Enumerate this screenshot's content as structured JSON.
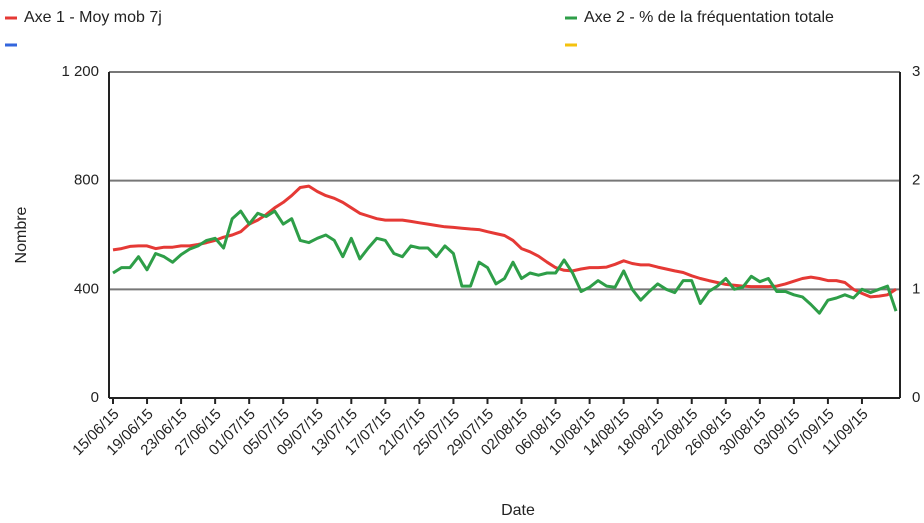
{
  "chart_data": {
    "type": "line",
    "xlabel": "Date",
    "ylabel": "Nombre",
    "categories": [
      "15/06/15",
      null,
      null,
      null,
      "19/06/15",
      null,
      null,
      null,
      "23/06/15",
      null,
      null,
      null,
      "27/06/15",
      null,
      null,
      null,
      "01/07/15",
      null,
      null,
      null,
      "05/07/15",
      null,
      null,
      null,
      "09/07/15",
      null,
      null,
      null,
      "13/07/15",
      null,
      null,
      null,
      "17/07/15",
      null,
      null,
      null,
      "21/07/15",
      null,
      null,
      null,
      "25/07/15",
      null,
      null,
      null,
      "29/07/15",
      null,
      null,
      null,
      "02/08/15",
      null,
      null,
      null,
      "06/08/15",
      null,
      null,
      null,
      "10/08/15",
      null,
      null,
      null,
      "14/08/15",
      null,
      null,
      null,
      "18/08/15",
      null,
      null,
      null,
      "22/08/15",
      null,
      null,
      null,
      "26/08/15",
      null,
      null,
      null,
      "30/08/15",
      null,
      null,
      null,
      "03/09/15",
      null,
      null,
      null,
      "07/09/15",
      null,
      null,
      null,
      "11/09/15",
      null,
      null,
      null,
      null
    ],
    "series": [
      {
        "name": "Axe 1 - Moy mob 7j",
        "color": "#e53935",
        "axis": "y",
        "values": [
          545,
          550,
          558,
          560,
          560,
          550,
          555,
          555,
          560,
          560,
          565,
          572,
          580,
          592,
          600,
          612,
          640,
          655,
          675,
          700,
          720,
          745,
          775,
          780,
          760,
          745,
          735,
          720,
          700,
          680,
          670,
          660,
          655,
          655,
          655,
          650,
          645,
          640,
          635,
          630,
          628,
          625,
          622,
          620,
          612,
          605,
          598,
          580,
          550,
          538,
          522,
          500,
          480,
          470,
          468,
          475,
          480,
          480,
          482,
          492,
          505,
          495,
          490,
          490,
          482,
          475,
          468,
          462,
          450,
          440,
          432,
          425,
          418,
          415,
          412,
          410,
          410,
          410,
          412,
          420,
          430,
          440,
          445,
          440,
          432,
          432,
          425,
          400,
          385,
          372,
          375,
          380,
          400
        ]
      },
      {
        "name": "Axe 2 - % de la fréquentation totale",
        "color": "#2e9e48",
        "axis": "y2",
        "values": [
          1.15,
          1.2,
          1.2,
          1.3,
          1.18,
          1.33,
          1.3,
          1.25,
          1.32,
          1.37,
          1.4,
          1.45,
          1.47,
          1.38,
          1.65,
          1.72,
          1.6,
          1.7,
          1.67,
          1.72,
          1.6,
          1.65,
          1.45,
          1.43,
          1.47,
          1.5,
          1.45,
          1.3,
          1.47,
          1.28,
          1.38,
          1.47,
          1.45,
          1.33,
          1.3,
          1.4,
          1.38,
          1.38,
          1.3,
          1.4,
          1.33,
          1.03,
          1.03,
          1.25,
          1.2,
          1.05,
          1.1,
          1.25,
          1.1,
          1.15,
          1.13,
          1.15,
          1.15,
          1.27,
          1.15,
          0.98,
          1.02,
          1.08,
          1.03,
          1.02,
          1.17,
          1.0,
          0.9,
          0.98,
          1.05,
          1.0,
          0.97,
          1.08,
          1.08,
          0.87,
          0.98,
          1.03,
          1.1,
          1.0,
          1.02,
          1.12,
          1.07,
          1.1,
          0.98,
          0.98,
          0.95,
          0.93,
          0.86,
          0.78,
          0.9,
          0.92,
          0.95,
          0.92,
          1.0,
          0.97,
          1.0,
          1.03,
          0.8
        ]
      }
    ],
    "ylim": [
      0,
      1200
    ],
    "yticks": [
      0,
      400,
      800,
      {
        "value": 1200,
        "label": "1 200"
      }
    ],
    "y2lim": [
      0,
      3
    ],
    "y2ticks": [
      0,
      1,
      2,
      3
    ],
    "grid": true
  }
}
